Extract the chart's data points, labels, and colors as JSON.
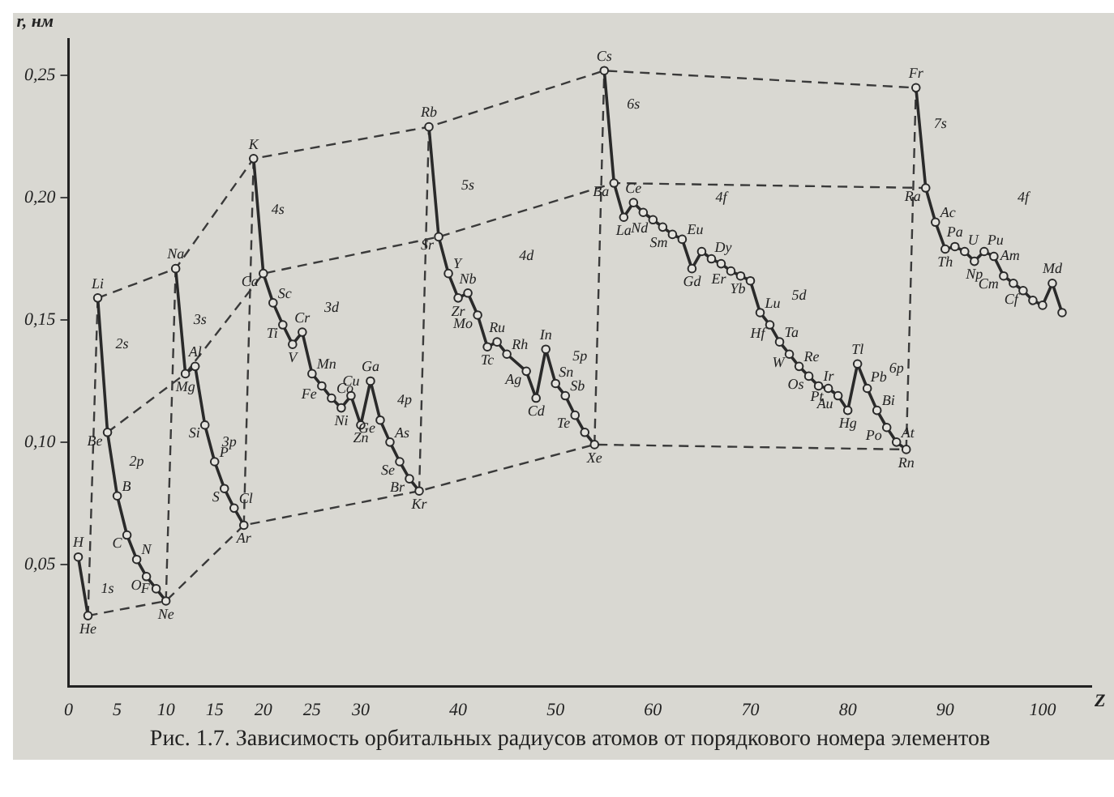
{
  "chart_data": {
    "type": "line",
    "xlabel": "Z",
    "ylabel": "r, нм",
    "xlim": [
      0,
      105
    ],
    "xticks": [
      0,
      5,
      10,
      15,
      20,
      25,
      30,
      40,
      50,
      60,
      70,
      80,
      90,
      100
    ],
    "ylim": [
      0,
      0.265
    ],
    "yticks": [
      {
        "value": 0.05,
        "label": "0,05"
      },
      {
        "value": 0.1,
        "label": "0,10"
      },
      {
        "value": 0.15,
        "label": "0,15"
      },
      {
        "value": 0.2,
        "label": "0,20"
      },
      {
        "value": 0.25,
        "label": "0,25"
      }
    ],
    "grid": false,
    "legend": false,
    "marker": "circle",
    "line_style": "solid",
    "series": [
      {
        "color": "#2a2a2a",
        "x": [
          1,
          2
        ],
        "values": [
          0.053,
          0.029
        ]
      },
      {
        "color": "#2a2a2a",
        "x": [
          3,
          4,
          5,
          6,
          7,
          8,
          9,
          10
        ],
        "values": [
          0.159,
          0.104,
          0.078,
          0.062,
          0.052,
          0.045,
          0.04,
          0.035
        ]
      },
      {
        "color": "#2a2a2a",
        "x": [
          11,
          12,
          13,
          14,
          15,
          16,
          17,
          18
        ],
        "values": [
          0.171,
          0.128,
          0.131,
          0.107,
          0.092,
          0.081,
          0.073,
          0.066
        ]
      },
      {
        "color": "#2a2a2a",
        "x": [
          19,
          20,
          21,
          22,
          23,
          24,
          25,
          26,
          27,
          28,
          29,
          30,
          31,
          32,
          33,
          34,
          35,
          36
        ],
        "values": [
          0.216,
          0.169,
          0.157,
          0.148,
          0.14,
          0.145,
          0.128,
          0.123,
          0.118,
          0.114,
          0.119,
          0.107,
          0.125,
          0.109,
          0.1,
          0.092,
          0.085,
          0.08
        ]
      },
      {
        "color": "#2a2a2a",
        "x": [
          37,
          38,
          39,
          40,
          41,
          42,
          43,
          44,
          45,
          47,
          48,
          49,
          50,
          51,
          52,
          53,
          54
        ],
        "values": [
          0.229,
          0.184,
          0.169,
          0.159,
          0.161,
          0.152,
          0.139,
          0.141,
          0.136,
          0.129,
          0.118,
          0.138,
          0.124,
          0.119,
          0.111,
          0.104,
          0.099
        ]
      },
      {
        "color": "#2a2a2a",
        "x": [
          55,
          56,
          57,
          58,
          59,
          60,
          61,
          62,
          63,
          64,
          65,
          66,
          67,
          68,
          69,
          70,
          71,
          72,
          73,
          74,
          75,
          76,
          77,
          78,
          79,
          80,
          81,
          82,
          83,
          84,
          85,
          86
        ],
        "values": [
          0.252,
          0.206,
          0.192,
          0.198,
          0.194,
          0.191,
          0.188,
          0.185,
          0.183,
          0.171,
          0.178,
          0.175,
          0.173,
          0.17,
          0.168,
          0.166,
          0.153,
          0.148,
          0.141,
          0.136,
          0.131,
          0.127,
          0.123,
          0.122,
          0.119,
          0.113,
          0.132,
          0.122,
          0.113,
          0.106,
          0.1,
          0.097
        ]
      },
      {
        "color": "#2a2a2a",
        "x": [
          87,
          88,
          89,
          90,
          91,
          92,
          93,
          94,
          95,
          96,
          97,
          98,
          99,
          100,
          101,
          102
        ],
        "values": [
          0.245,
          0.204,
          0.19,
          0.179,
          0.18,
          0.178,
          0.174,
          0.178,
          0.176,
          0.168,
          0.165,
          0.162,
          0.158,
          0.156,
          0.165,
          0.153
        ]
      },
      {
        "color": "#3a3a3a",
        "marker": "none",
        "line_style": "dashed",
        "x": [
          3,
          11,
          19,
          37,
          55,
          87
        ],
        "values": [
          0.159,
          0.171,
          0.216,
          0.229,
          0.252,
          0.245
        ]
      },
      {
        "color": "#3a3a3a",
        "marker": "none",
        "line_style": "dashed",
        "x": [
          4,
          12,
          20,
          38,
          56,
          88
        ],
        "values": [
          0.104,
          0.128,
          0.169,
          0.184,
          0.206,
          0.204
        ]
      },
      {
        "color": "#3a3a3a",
        "marker": "none",
        "line_style": "dashed",
        "x": [
          2,
          10,
          18,
          36,
          54,
          86
        ],
        "values": [
          0.029,
          0.035,
          0.066,
          0.08,
          0.099,
          0.097
        ]
      },
      {
        "color": "#3a3a3a",
        "marker": "none",
        "line_style": "dashed",
        "x": [
          2,
          3
        ],
        "values": [
          0.029,
          0.159
        ]
      },
      {
        "color": "#3a3a3a",
        "marker": "none",
        "line_style": "dashed",
        "x": [
          10,
          11
        ],
        "values": [
          0.035,
          0.171
        ]
      },
      {
        "color": "#3a3a3a",
        "marker": "none",
        "line_style": "dashed",
        "x": [
          18,
          19
        ],
        "values": [
          0.066,
          0.216
        ]
      },
      {
        "color": "#3a3a3a",
        "marker": "none",
        "line_style": "dashed",
        "x": [
          36,
          37
        ],
        "values": [
          0.08,
          0.229
        ]
      },
      {
        "color": "#3a3a3a",
        "marker": "none",
        "line_style": "dashed",
        "x": [
          54,
          55
        ],
        "values": [
          0.099,
          0.252
        ]
      },
      {
        "color": "#3a3a3a",
        "marker": "none",
        "line_style": "dashed",
        "x": [
          86,
          87
        ],
        "values": [
          0.097,
          0.245
        ]
      }
    ],
    "annotations": [
      "Рис. 1.7. Зависимость орбитальных радиусов атомов от порядкового номера элементов",
      "1s",
      "2s",
      "2p",
      "3s",
      "3p",
      "4s",
      "3d",
      "4p",
      "5s",
      "4d",
      "5p",
      "6s",
      "4f",
      "5d",
      "6p",
      "7s",
      "4f",
      {
        "text": "H",
        "x": 1,
        "y": 0.053
      },
      {
        "text": "He",
        "x": 2,
        "y": 0.029
      },
      {
        "text": "Li",
        "x": 3,
        "y": 0.159
      },
      {
        "text": "Be",
        "x": 4,
        "y": 0.104
      },
      {
        "text": "B",
        "x": 5,
        "y": 0.078
      },
      {
        "text": "C",
        "x": 6,
        "y": 0.062
      },
      {
        "text": "N",
        "x": 7,
        "y": 0.052
      },
      {
        "text": "O",
        "x": 8,
        "y": 0.045
      },
      {
        "text": "F",
        "x": 9,
        "y": 0.04
      },
      {
        "text": "Ne",
        "x": 10,
        "y": 0.035
      },
      {
        "text": "Na",
        "x": 11,
        "y": 0.171
      },
      {
        "text": "Mg",
        "x": 12,
        "y": 0.128
      },
      {
        "text": "Al",
        "x": 13,
        "y": 0.131
      },
      {
        "text": "Si",
        "x": 14,
        "y": 0.107
      },
      {
        "text": "P",
        "x": 15,
        "y": 0.092
      },
      {
        "text": "S",
        "x": 16,
        "y": 0.081
      },
      {
        "text": "Cl",
        "x": 17,
        "y": 0.073
      },
      {
        "text": "Ar",
        "x": 18,
        "y": 0.066
      },
      {
        "text": "K",
        "x": 19,
        "y": 0.216
      },
      {
        "text": "Ca",
        "x": 20,
        "y": 0.169
      },
      {
        "text": "Sc",
        "x": 21,
        "y": 0.157
      },
      {
        "text": "Ti",
        "x": 22,
        "y": 0.148
      },
      {
        "text": "V",
        "x": 23,
        "y": 0.14
      },
      {
        "text": "Cr",
        "x": 24,
        "y": 0.145
      },
      {
        "text": "Mn",
        "x": 25,
        "y": 0.128
      },
      {
        "text": "Fe",
        "x": 26,
        "y": 0.123
      },
      {
        "text": "Co",
        "x": 27,
        "y": 0.118
      },
      {
        "text": "Ni",
        "x": 28,
        "y": 0.114
      },
      {
        "text": "Cu",
        "x": 29,
        "y": 0.119
      },
      {
        "text": "Zn",
        "x": 30,
        "y": 0.107
      },
      {
        "text": "Ga",
        "x": 31,
        "y": 0.125
      },
      {
        "text": "Ge",
        "x": 32,
        "y": 0.109
      },
      {
        "text": "As",
        "x": 33,
        "y": 0.1
      },
      {
        "text": "Se",
        "x": 34,
        "y": 0.092
      },
      {
        "text": "Br",
        "x": 35,
        "y": 0.085
      },
      {
        "text": "Kr",
        "x": 36,
        "y": 0.08
      },
      {
        "text": "Rb",
        "x": 37,
        "y": 0.229
      },
      {
        "text": "Sr",
        "x": 38,
        "y": 0.184
      },
      {
        "text": "Y",
        "x": 39,
        "y": 0.169
      },
      {
        "text": "Zr",
        "x": 40,
        "y": 0.159
      },
      {
        "text": "Nb",
        "x": 41,
        "y": 0.161
      },
      {
        "text": "Mo",
        "x": 42,
        "y": 0.152
      },
      {
        "text": "Tc",
        "x": 43,
        "y": 0.139
      },
      {
        "text": "Ru",
        "x": 44,
        "y": 0.141
      },
      {
        "text": "Rh",
        "x": 45,
        "y": 0.136
      },
      {
        "text": "Ag",
        "x": 47,
        "y": 0.129
      },
      {
        "text": "Cd",
        "x": 48,
        "y": 0.118
      },
      {
        "text": "In",
        "x": 49,
        "y": 0.138
      },
      {
        "text": "Sn",
        "x": 50,
        "y": 0.124
      },
      {
        "text": "Sb",
        "x": 51,
        "y": 0.119
      },
      {
        "text": "Te",
        "x": 52,
        "y": 0.111
      },
      {
        "text": "Xe",
        "x": 54,
        "y": 0.099
      },
      {
        "text": "Cs",
        "x": 55,
        "y": 0.252
      },
      {
        "text": "Ba",
        "x": 56,
        "y": 0.206
      },
      {
        "text": "La",
        "x": 57,
        "y": 0.192
      },
      {
        "text": "Ce",
        "x": 58,
        "y": 0.198
      },
      {
        "text": "Nd",
        "x": 60,
        "y": 0.191
      },
      {
        "text": "Sm",
        "x": 62,
        "y": 0.185
      },
      {
        "text": "Eu",
        "x": 63,
        "y": 0.183
      },
      {
        "text": "Gd",
        "x": 64,
        "y": 0.171
      },
      {
        "text": "Dy",
        "x": 66,
        "y": 0.175
      },
      {
        "text": "Er",
        "x": 68,
        "y": 0.17
      },
      {
        "text": "Yb",
        "x": 70,
        "y": 0.166
      },
      {
        "text": "Lu",
        "x": 71,
        "y": 0.153
      },
      {
        "text": "Hf",
        "x": 72,
        "y": 0.148
      },
      {
        "text": "Ta",
        "x": 73,
        "y": 0.141
      },
      {
        "text": "W",
        "x": 74,
        "y": 0.136
      },
      {
        "text": "Re",
        "x": 75,
        "y": 0.131
      },
      {
        "text": "Os",
        "x": 76,
        "y": 0.127
      },
      {
        "text": "Ir",
        "x": 77,
        "y": 0.123
      },
      {
        "text": "Pt",
        "x": 78,
        "y": 0.122
      },
      {
        "text": "Au",
        "x": 79,
        "y": 0.119
      },
      {
        "text": "Hg",
        "x": 80,
        "y": 0.113
      },
      {
        "text": "Tl",
        "x": 81,
        "y": 0.132
      },
      {
        "text": "Pb",
        "x": 82,
        "y": 0.122
      },
      {
        "text": "Bi",
        "x": 83,
        "y": 0.113
      },
      {
        "text": "Po",
        "x": 84,
        "y": 0.106
      },
      {
        "text": "At",
        "x": 85,
        "y": 0.1
      },
      {
        "text": "Rn",
        "x": 86,
        "y": 0.097
      },
      {
        "text": "Fr",
        "x": 87,
        "y": 0.245
      },
      {
        "text": "Ra",
        "x": 88,
        "y": 0.204
      },
      {
        "text": "Ac",
        "x": 89,
        "y": 0.19
      },
      {
        "text": "Th",
        "x": 90,
        "y": 0.179
      },
      {
        "text": "Pa",
        "x": 91,
        "y": 0.18
      },
      {
        "text": "U",
        "x": 92,
        "y": 0.178
      },
      {
        "text": "Np",
        "x": 93,
        "y": 0.174
      },
      {
        "text": "Pu",
        "x": 94,
        "y": 0.178
      },
      {
        "text": "Am",
        "x": 95,
        "y": 0.176
      },
      {
        "text": "Cm",
        "x": 96,
        "y": 0.168
      },
      {
        "text": "Cf",
        "x": 98,
        "y": 0.162
      },
      {
        "text": "Md",
        "x": 101,
        "y": 0.165
      }
    ]
  }
}
